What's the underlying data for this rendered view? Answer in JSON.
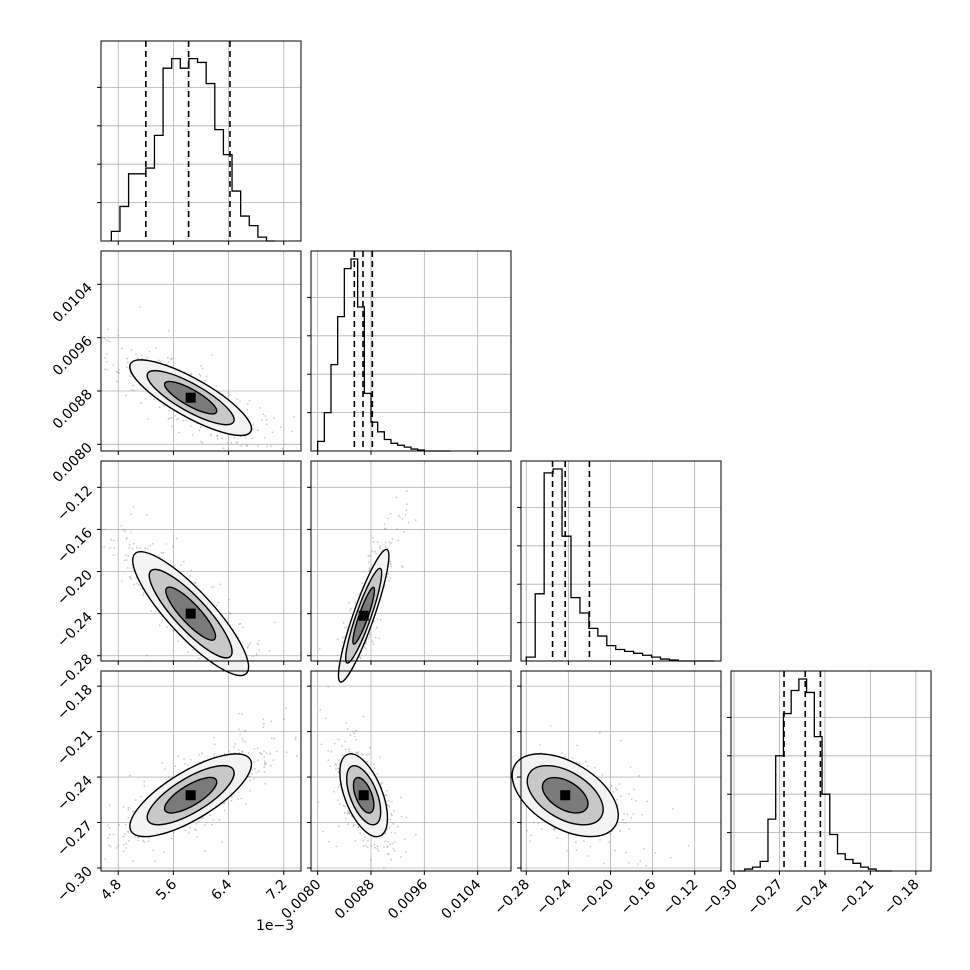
{
  "chart_data": {
    "type": "corner",
    "grid": true,
    "quantile_lines": "dashed",
    "parameters": [
      {
        "ticks": [
          4.8,
          5.6,
          6.4,
          7.2
        ],
        "tick_labels": [
          "4.8",
          "5.6",
          "6.4",
          "7.2"
        ],
        "offset_label": "1e−3",
        "range": [
          4.55,
          7.45
        ],
        "quantiles": [
          5.2,
          5.82,
          6.42
        ]
      },
      {
        "ticks": [
          0.008,
          0.0088,
          0.0096,
          0.0104
        ],
        "tick_labels": [
          "0.0080",
          "0.0088",
          "0.0096",
          "0.0104"
        ],
        "range": [
          0.0079,
          0.0109
        ],
        "quantiles": [
          0.00855,
          0.00868,
          0.00882
        ]
      },
      {
        "ticks": [
          -0.28,
          -0.24,
          -0.2,
          -0.16,
          -0.12
        ],
        "tick_labels": [
          "−0.28",
          "−0.24",
          "−0.20",
          "−0.16",
          "−0.12"
        ],
        "range": [
          -0.285,
          -0.095
        ],
        "quantiles": [
          -0.255,
          -0.243,
          -0.22
        ]
      },
      {
        "ticks": [
          -0.3,
          -0.27,
          -0.24,
          -0.21,
          -0.18
        ],
        "tick_labels": [
          "−0.30",
          "−0.27",
          "−0.24",
          "−0.21",
          "−0.18"
        ],
        "range": [
          -0.302,
          -0.17
        ],
        "quantiles": [
          -0.267,
          -0.253,
          -0.243
        ]
      }
    ],
    "histograms": [
      {
        "edges_from": 4.7,
        "bin_width": 0.125,
        "counts": [
          0.05,
          0.18,
          0.35,
          0.35,
          0.38,
          0.55,
          0.9,
          0.95,
          0.9,
          0.95,
          0.93,
          0.82,
          0.58,
          0.45,
          0.26,
          0.13,
          0.08,
          0.02,
          0.0
        ]
      },
      {
        "edges_from": 0.008,
        "bin_width": 0.0001,
        "counts": [
          0.05,
          0.2,
          0.45,
          0.7,
          0.95,
          1.0,
          0.75,
          0.3,
          0.15,
          0.1,
          0.06,
          0.04,
          0.03,
          0.02,
          0.01,
          0.005,
          0.0,
          0.0,
          0.0,
          0.0
        ]
      },
      {
        "edges_from": -0.28,
        "bin_width": 0.0085,
        "counts": [
          0.02,
          0.35,
          0.98,
          1.0,
          0.65,
          0.33,
          0.25,
          0.17,
          0.13,
          0.08,
          0.06,
          0.05,
          0.04,
          0.03,
          0.02,
          0.01,
          0.005,
          0.0,
          0.0,
          0.0,
          0.0
        ]
      },
      {
        "edges_from": -0.298,
        "bin_width": 0.0051,
        "counts": [
          0.0,
          0.01,
          0.02,
          0.05,
          0.27,
          0.6,
          0.82,
          0.94,
          1.0,
          0.93,
          0.7,
          0.4,
          0.19,
          0.09,
          0.06,
          0.04,
          0.02,
          0.01,
          0.0,
          0.0
        ]
      }
    ],
    "pair_distributions": [
      {
        "pair": [
          1,
          0
        ],
        "center": [
          5.85,
          0.0087
        ],
        "spread": [
          0.42,
          0.00027
        ],
        "correlation": -0.82
      },
      {
        "pair": [
          2,
          0
        ],
        "center": [
          5.85,
          -0.24
        ],
        "spread": [
          0.4,
          0.028
        ],
        "correlation": -0.86
      },
      {
        "pair": [
          2,
          1
        ],
        "center": [
          0.00869,
          -0.242
        ],
        "spread": [
          0.00018,
          0.03
        ],
        "correlation": 0.9
      },
      {
        "pair": [
          3,
          0
        ],
        "center": [
          5.85,
          -0.252
        ],
        "spread": [
          0.42,
          0.013
        ],
        "correlation": 0.75
      },
      {
        "pair": [
          3,
          1
        ],
        "center": [
          0.00869,
          -0.252
        ],
        "spread": [
          0.00017,
          0.013
        ],
        "correlation": -0.55
      },
      {
        "pair": [
          3,
          2
        ],
        "center": [
          -0.243,
          -0.252
        ],
        "spread": [
          0.024,
          0.013
        ],
        "correlation": -0.48
      }
    ]
  }
}
